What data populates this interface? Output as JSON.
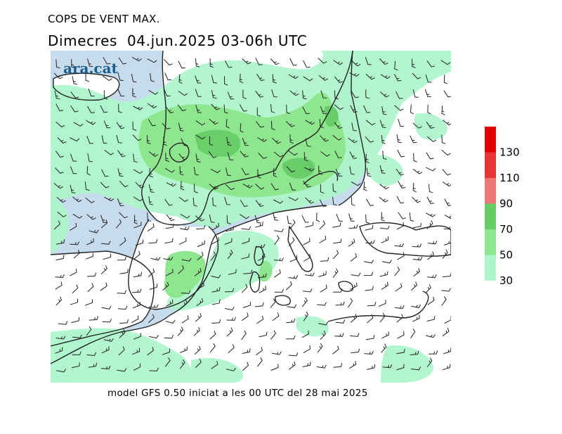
{
  "title": "COPS DE VENT MAX.",
  "subtitle": "Dimecres  04.jun.2025 03-06h UTC",
  "footer": "model GFS 0.50 iniciat a les 00 UTC del 28 mai 2025",
  "logo": "ara.cat",
  "legend": {
    "labels": [
      "130",
      "110",
      "90",
      "70",
      "50",
      "30"
    ],
    "bands": [
      {
        "from": 30,
        "to": 50,
        "color": "#aef5cc"
      },
      {
        "from": 50,
        "to": 70,
        "color": "#8ee68e"
      },
      {
        "from": 70,
        "to": 90,
        "color": "#66cc66"
      },
      {
        "from": 90,
        "to": 110,
        "color": "#f07676"
      },
      {
        "from": 110,
        "to": 130,
        "color": "#e83434"
      },
      {
        "from": 130,
        "to": 150,
        "color": "#e00000"
      }
    ]
  },
  "colors": {
    "sea": "#c6dced",
    "land": "#ffffff",
    "wind_30_50": "#aef5cc",
    "wind_50_70": "#8ee68e",
    "wind_70_90": "#66cc66",
    "coastline": "#222222",
    "barbs": "#222222"
  }
}
